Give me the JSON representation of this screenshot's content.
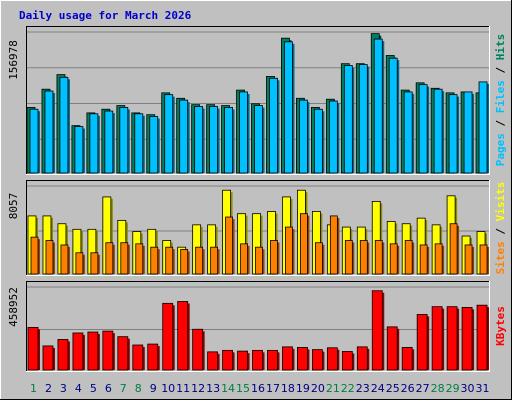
{
  "chart_data": {
    "type": "bar",
    "title": "Daily usage for March 2026",
    "categories": [
      "1",
      "2",
      "3",
      "4",
      "5",
      "6",
      "7",
      "8",
      "9",
      "10",
      "11",
      "12",
      "13",
      "14",
      "15",
      "16",
      "17",
      "18",
      "19",
      "20",
      "21",
      "22",
      "23",
      "24",
      "25",
      "26",
      "27",
      "28",
      "29",
      "30",
      "31"
    ],
    "weekend_days": [
      "1",
      "7",
      "8",
      "14",
      "15",
      "21",
      "22",
      "28",
      "29"
    ],
    "colors": {
      "pages": "#00805c",
      "files": "#00c0ff",
      "hits": "#00805c",
      "visits": "#ffff00",
      "sites": "#ff8000",
      "kbytes": "#ff0000",
      "weekday_label": "#000080",
      "weekend_label": "#008040",
      "title": "#0000cc"
    },
    "panels": [
      {
        "name": "hits-panel",
        "ytick_label": "156978",
        "ylim": [
          0,
          156978
        ],
        "legend": [
          {
            "text": "Pages",
            "color": "#00c0ff"
          },
          {
            "text": " / ",
            "color": "#000000"
          },
          {
            "text": "Files",
            "color": "#00c0ff"
          },
          {
            "text": " / ",
            "color": "#000000"
          },
          {
            "text": "Hits",
            "color": "#00805c"
          }
        ],
        "series": [
          {
            "name": "Hits",
            "values": [
              72000,
              92000,
              108000,
              52000,
              66000,
              70000,
              74000,
              66000,
              64000,
              88000,
              82000,
              75000,
              75000,
              74000,
              91000,
              76000,
              106000,
              148000,
              82000,
              72000,
              81000,
              120000,
              120000,
              153000,
              129000,
              91000,
              99000,
              93000,
              88000,
              89000,
              88000
            ]
          },
          {
            "name": "Files",
            "values": [
              70000,
              90000,
              105000,
              51000,
              65000,
              68000,
              72000,
              65000,
              62000,
              86000,
              80000,
              73000,
              73000,
              72000,
              89000,
              74000,
              104000,
              144000,
              80000,
              70000,
              79000,
              118000,
              119000,
              147000,
              126000,
              89000,
              97000,
              92000,
              86000,
              89000,
              100000
            ]
          }
        ]
      },
      {
        "name": "visits-panel",
        "ytick_label": "8057",
        "ylim": [
          0,
          8057
        ],
        "legend": [
          {
            "text": "Sites",
            "color": "#ff8000"
          },
          {
            "text": " / ",
            "color": "#000000"
          },
          {
            "text": "Visits",
            "color": "#ffff00"
          }
        ],
        "series": [
          {
            "name": "Visits",
            "values": [
              5200,
              5200,
              4500,
              4000,
              4000,
              6900,
              4800,
              3800,
              4000,
              3000,
              2400,
              4400,
              4400,
              7500,
              5400,
              5400,
              5600,
              6900,
              7500,
              5600,
              4400,
              4200,
              4200,
              6500,
              4700,
              4500,
              5000,
              4400,
              7000,
              3400,
              3800
            ]
          },
          {
            "name": "Sites",
            "values": [
              3300,
              3000,
              2600,
              1900,
              1900,
              2800,
              2800,
              2700,
              2400,
              2400,
              2200,
              2400,
              2400,
              5100,
              2700,
              2400,
              3000,
              4200,
              5400,
              2800,
              5200,
              3000,
              3000,
              3000,
              2700,
              3000,
              2600,
              2700,
              4500,
              2600,
              2600
            ]
          }
        ]
      },
      {
        "name": "kbytes-panel",
        "ytick_label": "458952",
        "ylim": [
          0,
          458952
        ],
        "legend": [
          {
            "text": "KBytes",
            "color": "#ff0000"
          }
        ],
        "series": [
          {
            "name": "KBytes",
            "values": [
              230000,
              130000,
              165000,
              200000,
              205000,
              210000,
              180000,
              135000,
              140000,
              360000,
              370000,
              220000,
              98000,
              106000,
              102000,
              106000,
              106000,
              125000,
              122000,
              110000,
              120000,
              100000,
              125000,
              428000,
              233000,
              122000,
              300000,
              342000,
              342000,
              338000,
              350000
            ]
          }
        ]
      }
    ]
  }
}
